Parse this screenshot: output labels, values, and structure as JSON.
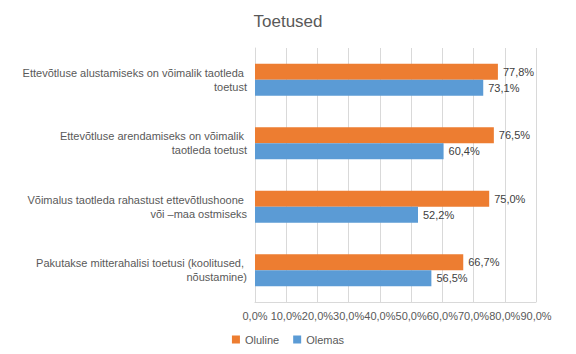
{
  "chart_data": {
    "type": "bar",
    "title": "Toetused",
    "orientation": "horizontal",
    "categories": [
      "Ettevõtluse alustamiseks on võimalik taotleda toetust",
      "Ettevõtluse arendamiseks on võimalik taotleda toetust",
      "Võimalus taotleda rahastust ettevõtlushoone või –maa ostmiseks",
      "Pakutakse mitterahalisi toetusi (koolitused, nõustamine)"
    ],
    "series": [
      {
        "name": "Oluline",
        "color": "#ed7d31",
        "values": [
          77.8,
          76.5,
          75.0,
          66.7
        ],
        "value_labels": [
          "77,8%",
          "76,5%",
          "75,0%",
          "66,7%"
        ]
      },
      {
        "name": "Olemas",
        "color": "#5b9bd5",
        "values": [
          73.1,
          60.4,
          52.2,
          56.5
        ],
        "value_labels": [
          "73,1%",
          "60,4%",
          "52,2%",
          "56,5%"
        ]
      }
    ],
    "xlim": [
      0,
      90
    ],
    "xticks": [
      {
        "value": 0,
        "label": "0,0%"
      },
      {
        "value": 10,
        "label": "10,0%"
      },
      {
        "value": 20,
        "label": "20,0%"
      },
      {
        "value": 30,
        "label": "30,0%"
      },
      {
        "value": 40,
        "label": "40,0%"
      },
      {
        "value": 50,
        "label": "50,0%"
      },
      {
        "value": 60,
        "label": "60,0%"
      },
      {
        "value": 70,
        "label": "70,0%"
      },
      {
        "value": 80,
        "label": "80,0%"
      },
      {
        "value": 90,
        "label": "90,0%"
      }
    ],
    "grid": true,
    "legend": "bottom",
    "data_labels": true
  }
}
